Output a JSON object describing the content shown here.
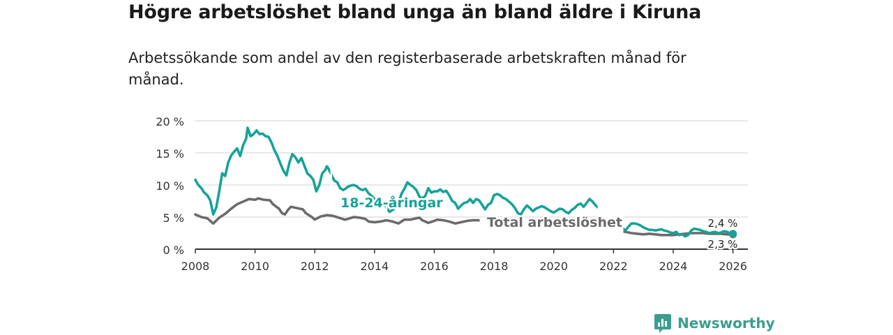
{
  "title": "Högre arbetslöshet bland unga än bland äldre i Kiruna",
  "subtitle": "Arbetssökande som andel av den registerbaserade arbetskraften månad för månad.",
  "brand": {
    "name": "Newsworthy",
    "color": "#3a9e8f",
    "icon": "newsworthy-logo-icon"
  },
  "colors": {
    "youth": "#15a398",
    "total": "#6b6b6b",
    "grid": "#d9d9d9",
    "axis": "#333333"
  },
  "chart_data": {
    "type": "line",
    "xlim": [
      2008,
      2026.5
    ],
    "ylim": [
      0,
      20
    ],
    "x_ticks": [
      2008,
      2010,
      2012,
      2014,
      2016,
      2018,
      2020,
      2022,
      2024,
      2026
    ],
    "x_tick_labels": [
      "2008",
      "2010",
      "2012",
      "2014",
      "2016",
      "2018",
      "2020",
      "2022",
      "2024",
      "2026"
    ],
    "y_ticks": [
      0,
      5,
      10,
      15,
      20
    ],
    "y_tick_labels": [
      "0 %",
      "5 %",
      "10 %",
      "15 %",
      "20 %"
    ],
    "series": [
      {
        "name": "18-24-åringar",
        "label": "18-24-åringar",
        "end_label": "2,4 %",
        "gaps": [
          [
            2012.45,
            2012.65
          ],
          [
            2014.3,
            2014.5
          ],
          [
            2021.4,
            2022.4
          ]
        ],
        "points": [
          [
            2008.0,
            10.8
          ],
          [
            2008.1,
            10.0
          ],
          [
            2008.2,
            9.5
          ],
          [
            2008.3,
            8.8
          ],
          [
            2008.4,
            8.4
          ],
          [
            2008.5,
            7.6
          ],
          [
            2008.6,
            5.4
          ],
          [
            2008.7,
            6.5
          ],
          [
            2008.8,
            9.0
          ],
          [
            2008.9,
            11.8
          ],
          [
            2009.0,
            11.4
          ],
          [
            2009.1,
            13.5
          ],
          [
            2009.2,
            14.6
          ],
          [
            2009.3,
            15.2
          ],
          [
            2009.4,
            15.7
          ],
          [
            2009.5,
            14.5
          ],
          [
            2009.6,
            16.2
          ],
          [
            2009.7,
            17.2
          ],
          [
            2009.75,
            18.9
          ],
          [
            2009.85,
            17.6
          ],
          [
            2009.95,
            17.9
          ],
          [
            2010.05,
            18.5
          ],
          [
            2010.15,
            17.9
          ],
          [
            2010.25,
            18.0
          ],
          [
            2010.35,
            17.6
          ],
          [
            2010.45,
            17.5
          ],
          [
            2010.55,
            16.6
          ],
          [
            2010.65,
            15.4
          ],
          [
            2010.75,
            14.5
          ],
          [
            2010.85,
            13.3
          ],
          [
            2010.95,
            12.2
          ],
          [
            2011.05,
            11.5
          ],
          [
            2011.15,
            13.5
          ],
          [
            2011.25,
            14.8
          ],
          [
            2011.35,
            14.3
          ],
          [
            2011.45,
            13.5
          ],
          [
            2011.55,
            14.2
          ],
          [
            2011.65,
            13.0
          ],
          [
            2011.75,
            11.8
          ],
          [
            2011.85,
            11.4
          ],
          [
            2011.95,
            10.8
          ],
          [
            2012.05,
            9.0
          ],
          [
            2012.15,
            10.0
          ],
          [
            2012.25,
            11.8
          ],
          [
            2012.35,
            12.3
          ],
          [
            2012.4,
            12.9
          ],
          [
            2012.45,
            12.6
          ],
          [
            2012.65,
            10.7
          ],
          [
            2012.75,
            10.4
          ],
          [
            2012.85,
            9.5
          ],
          [
            2012.95,
            9.2
          ],
          [
            2013.05,
            9.5
          ],
          [
            2013.1,
            9.7
          ],
          [
            2013.2,
            9.9
          ],
          [
            2013.3,
            10.0
          ],
          [
            2013.4,
            9.8
          ],
          [
            2013.5,
            9.4
          ],
          [
            2013.6,
            9.2
          ],
          [
            2013.7,
            9.4
          ],
          [
            2013.8,
            8.7
          ],
          [
            2013.9,
            8.3
          ],
          [
            2014.0,
            7.8
          ],
          [
            2014.1,
            7.6
          ],
          [
            2014.2,
            7.4
          ],
          [
            2014.3,
            7.2
          ],
          [
            2014.5,
            5.8
          ],
          [
            2014.6,
            6.1
          ],
          [
            2014.7,
            6.5
          ],
          [
            2014.8,
            7.2
          ],
          [
            2014.9,
            8.6
          ],
          [
            2015.0,
            9.4
          ],
          [
            2015.1,
            10.4
          ],
          [
            2015.2,
            10.0
          ],
          [
            2015.3,
            9.7
          ],
          [
            2015.4,
            9.2
          ],
          [
            2015.5,
            8.2
          ],
          [
            2015.6,
            7.9
          ],
          [
            2015.7,
            8.3
          ],
          [
            2015.8,
            9.5
          ],
          [
            2015.9,
            8.8
          ],
          [
            2016.0,
            9.0
          ],
          [
            2016.1,
            9.0
          ],
          [
            2016.2,
            9.3
          ],
          [
            2016.3,
            8.9
          ],
          [
            2016.4,
            9.1
          ],
          [
            2016.5,
            8.4
          ],
          [
            2016.6,
            7.5
          ],
          [
            2016.7,
            7.2
          ],
          [
            2016.8,
            6.3
          ],
          [
            2016.9,
            6.8
          ],
          [
            2017.0,
            7.2
          ],
          [
            2017.1,
            7.3
          ],
          [
            2017.2,
            7.8
          ],
          [
            2017.3,
            7.2
          ],
          [
            2017.4,
            7.8
          ],
          [
            2017.5,
            7.6
          ],
          [
            2017.6,
            6.9
          ],
          [
            2017.7,
            6.2
          ],
          [
            2017.8,
            6.9
          ],
          [
            2017.9,
            7.2
          ],
          [
            2018.0,
            8.4
          ],
          [
            2018.1,
            8.6
          ],
          [
            2018.2,
            8.4
          ],
          [
            2018.3,
            8.0
          ],
          [
            2018.4,
            7.8
          ],
          [
            2018.5,
            7.4
          ],
          [
            2018.6,
            7.0
          ],
          [
            2018.7,
            6.4
          ],
          [
            2018.8,
            5.6
          ],
          [
            2018.9,
            5.4
          ],
          [
            2019.0,
            6.2
          ],
          [
            2019.1,
            6.8
          ],
          [
            2019.2,
            6.4
          ],
          [
            2019.3,
            5.9
          ],
          [
            2019.4,
            6.3
          ],
          [
            2019.5,
            6.5
          ],
          [
            2019.6,
            6.7
          ],
          [
            2019.7,
            6.5
          ],
          [
            2019.8,
            6.2
          ],
          [
            2019.9,
            5.9
          ],
          [
            2020.0,
            5.7
          ],
          [
            2020.1,
            6.0
          ],
          [
            2020.2,
            6.3
          ],
          [
            2020.3,
            6.2
          ],
          [
            2020.4,
            5.8
          ],
          [
            2020.5,
            5.6
          ],
          [
            2020.6,
            6.1
          ],
          [
            2020.7,
            6.4
          ],
          [
            2020.8,
            6.9
          ],
          [
            2020.9,
            7.1
          ],
          [
            2021.0,
            6.6
          ],
          [
            2021.1,
            7.2
          ],
          [
            2021.2,
            7.8
          ],
          [
            2021.3,
            7.4
          ],
          [
            2021.4,
            6.8
          ],
          [
            2022.4,
            2.9
          ],
          [
            2022.5,
            3.5
          ],
          [
            2022.6,
            4.0
          ],
          [
            2022.7,
            4.0
          ],
          [
            2022.8,
            3.9
          ],
          [
            2022.9,
            3.7
          ],
          [
            2023.0,
            3.4
          ],
          [
            2023.1,
            3.2
          ],
          [
            2023.2,
            3.0
          ],
          [
            2023.3,
            3.0
          ],
          [
            2023.4,
            2.9
          ],
          [
            2023.5,
            3.0
          ],
          [
            2023.6,
            3.1
          ],
          [
            2023.7,
            2.9
          ],
          [
            2023.8,
            2.8
          ],
          [
            2023.9,
            2.6
          ],
          [
            2024.0,
            2.5
          ],
          [
            2024.1,
            2.7
          ],
          [
            2024.2,
            2.2
          ],
          [
            2024.3,
            2.3
          ],
          [
            2024.4,
            2.0
          ],
          [
            2024.5,
            2.2
          ],
          [
            2024.6,
            2.9
          ],
          [
            2024.7,
            3.2
          ],
          [
            2024.8,
            3.1
          ],
          [
            2024.9,
            3.0
          ],
          [
            2025.0,
            2.8
          ],
          [
            2025.1,
            2.7
          ],
          [
            2025.2,
            2.5
          ],
          [
            2025.3,
            2.6
          ],
          [
            2025.4,
            2.7
          ],
          [
            2025.5,
            2.5
          ],
          [
            2025.6,
            2.6
          ],
          [
            2025.7,
            2.8
          ],
          [
            2025.8,
            2.7
          ],
          [
            2025.9,
            2.5
          ],
          [
            2026.0,
            2.4
          ]
        ]
      },
      {
        "name": "Total arbetslöshet",
        "label": "Total arbetslöshet",
        "end_label": "2,3 %",
        "gaps": [
          [
            2017.45,
            2021.9
          ]
        ],
        "points": [
          [
            2008.0,
            5.4
          ],
          [
            2008.2,
            5.0
          ],
          [
            2008.4,
            4.8
          ],
          [
            2008.5,
            4.4
          ],
          [
            2008.6,
            4.0
          ],
          [
            2008.8,
            4.9
          ],
          [
            2009.0,
            5.5
          ],
          [
            2009.2,
            6.3
          ],
          [
            2009.4,
            7.0
          ],
          [
            2009.6,
            7.4
          ],
          [
            2009.8,
            7.8
          ],
          [
            2010.0,
            7.7
          ],
          [
            2010.1,
            7.9
          ],
          [
            2010.3,
            7.7
          ],
          [
            2010.5,
            7.6
          ],
          [
            2010.6,
            7.0
          ],
          [
            2010.8,
            6.3
          ],
          [
            2010.9,
            5.6
          ],
          [
            2011.0,
            5.4
          ],
          [
            2011.1,
            6.1
          ],
          [
            2011.2,
            6.6
          ],
          [
            2011.4,
            6.4
          ],
          [
            2011.6,
            6.2
          ],
          [
            2011.7,
            5.6
          ],
          [
            2011.8,
            5.3
          ],
          [
            2011.9,
            5.0
          ],
          [
            2012.0,
            4.6
          ],
          [
            2012.2,
            5.1
          ],
          [
            2012.4,
            5.3
          ],
          [
            2012.6,
            5.2
          ],
          [
            2012.8,
            4.9
          ],
          [
            2013.0,
            4.6
          ],
          [
            2013.1,
            4.7
          ],
          [
            2013.3,
            5.0
          ],
          [
            2013.5,
            4.9
          ],
          [
            2013.7,
            4.7
          ],
          [
            2013.8,
            4.3
          ],
          [
            2014.0,
            4.2
          ],
          [
            2014.2,
            4.3
          ],
          [
            2014.4,
            4.5
          ],
          [
            2014.6,
            4.3
          ],
          [
            2014.8,
            4.0
          ],
          [
            2015.0,
            4.6
          ],
          [
            2015.2,
            4.6
          ],
          [
            2015.4,
            4.8
          ],
          [
            2015.5,
            4.9
          ],
          [
            2015.6,
            4.5
          ],
          [
            2015.8,
            4.1
          ],
          [
            2016.0,
            4.4
          ],
          [
            2016.1,
            4.6
          ],
          [
            2016.3,
            4.5
          ],
          [
            2016.5,
            4.3
          ],
          [
            2016.7,
            4.0
          ],
          [
            2016.9,
            4.2
          ],
          [
            2017.1,
            4.4
          ],
          [
            2017.3,
            4.5
          ],
          [
            2017.45,
            4.5
          ],
          [
            2021.9,
            3.0
          ],
          [
            2022.0,
            2.9
          ],
          [
            2022.2,
            2.8
          ],
          [
            2022.4,
            2.7
          ],
          [
            2022.6,
            2.5
          ],
          [
            2022.8,
            2.4
          ],
          [
            2023.0,
            2.3
          ],
          [
            2023.2,
            2.4
          ],
          [
            2023.4,
            2.3
          ],
          [
            2023.6,
            2.2
          ],
          [
            2023.8,
            2.2
          ],
          [
            2024.0,
            2.2
          ],
          [
            2024.2,
            2.3
          ],
          [
            2024.4,
            2.4
          ],
          [
            2024.6,
            2.5
          ],
          [
            2024.8,
            2.5
          ],
          [
            2025.0,
            2.5
          ],
          [
            2025.2,
            2.4
          ],
          [
            2025.4,
            2.4
          ],
          [
            2025.6,
            2.4
          ],
          [
            2025.8,
            2.3
          ],
          [
            2026.0,
            2.3
          ]
        ]
      }
    ]
  }
}
